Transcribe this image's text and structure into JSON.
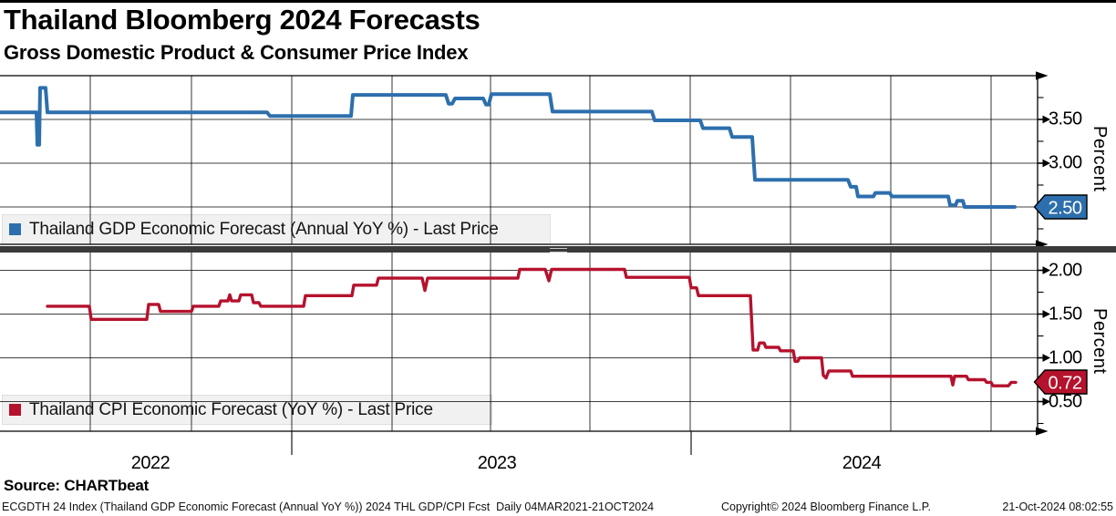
{
  "header": {
    "title": "Thailand Bloomberg 2024 Forecasts",
    "subtitle": "Gross Domestic Product & Consumer Price Index"
  },
  "source": {
    "label": "Source: CHARTbeat"
  },
  "footer": {
    "left": "ECGDTH 24 Index (Thailand GDP Economic Forecast (Annual YoY %)) 2024 THL GDP/CPI Fcst  Daily 04MAR2021-21OCT2024",
    "copyright": "Copyright© 2024 Bloomberg Finance L.P.",
    "datetime": "21-Oct-2024 08:02:55"
  },
  "chart_data": {
    "type": "line",
    "grid": true,
    "legend_position": "inside-bottom-left",
    "x_axis": {
      "years": [
        "2022",
        "2023",
        "2024"
      ],
      "year_label_x": [
        165,
        545,
        945
      ],
      "year_divider_x": [
        320,
        758
      ],
      "x_gridlines": [
        99,
        210,
        320,
        430,
        538,
        647,
        757,
        867,
        977,
        1087
      ]
    },
    "panels": [
      {
        "id": "gdp",
        "legend": "Thailand GDP Economic Forecast (Annual YoY %) - Last Price",
        "ylabel": "Percent",
        "color": "#2d6fad",
        "ylim": [
          2.09,
          4.0
        ],
        "gridline_values": [
          3.5,
          3.0,
          2.5
        ],
        "tick_labels": [
          {
            "v": 3.5,
            "label": "3.50"
          },
          {
            "v": 3.0,
            "label": "3.00"
          }
        ],
        "minor_ticks": [
          3.75,
          3.25,
          2.75,
          2.25
        ],
        "last_price": "2.50",
        "last_value": 2.5,
        "points": [
          [
            0,
            3.58
          ],
          [
            40,
            3.58
          ],
          [
            41,
            3.21
          ],
          [
            43,
            3.21
          ],
          [
            44,
            3.86
          ],
          [
            50,
            3.86
          ],
          [
            52,
            3.58
          ],
          [
            293,
            3.58
          ],
          [
            296,
            3.54
          ],
          [
            385,
            3.54
          ],
          [
            387,
            3.78
          ],
          [
            489,
            3.78
          ],
          [
            492,
            3.68
          ],
          [
            496,
            3.68
          ],
          [
            499,
            3.74
          ],
          [
            530,
            3.74
          ],
          [
            533,
            3.67
          ],
          [
            536,
            3.67
          ],
          [
            539,
            3.79
          ],
          [
            603,
            3.79
          ],
          [
            606,
            3.59
          ],
          [
            715,
            3.59
          ],
          [
            718,
            3.49
          ],
          [
            768,
            3.49
          ],
          [
            771,
            3.4
          ],
          [
            800,
            3.4
          ],
          [
            803,
            3.3
          ],
          [
            825,
            3.3
          ],
          [
            828,
            2.81
          ],
          [
            930,
            2.81
          ],
          [
            933,
            2.73
          ],
          [
            939,
            2.73
          ],
          [
            941,
            2.62
          ],
          [
            958,
            2.62
          ],
          [
            960,
            2.66
          ],
          [
            976,
            2.66
          ],
          [
            978,
            2.62
          ],
          [
            1040,
            2.62
          ],
          [
            1042,
            2.52
          ],
          [
            1048,
            2.52
          ],
          [
            1050,
            2.57
          ],
          [
            1056,
            2.57
          ],
          [
            1058,
            2.5
          ],
          [
            1113,
            2.5
          ]
        ]
      },
      {
        "id": "cpi",
        "legend": "Thailand CPI Economic Forecast (YoY %) - Last Price",
        "ylabel": "Percent",
        "color": "#b5122d",
        "ylim": [
          0.16,
          2.19
        ],
        "gridline_values": [
          2.0,
          1.5,
          1.0,
          0.5
        ],
        "tick_labels": [
          {
            "v": 2.0,
            "label": "2.00"
          },
          {
            "v": 1.5,
            "label": "1.50"
          },
          {
            "v": 1.0,
            "label": "1.00"
          },
          {
            "v": 0.5,
            "label": "0.50"
          }
        ],
        "minor_ticks": [
          1.75,
          1.25,
          0.75,
          0.25
        ],
        "last_price": "0.72",
        "last_value": 0.72,
        "points": [
          [
            52,
            1.59
          ],
          [
            98,
            1.59
          ],
          [
            100,
            1.44
          ],
          [
            161,
            1.44
          ],
          [
            163,
            1.61
          ],
          [
            174,
            1.61
          ],
          [
            176,
            1.53
          ],
          [
            210,
            1.53
          ],
          [
            212,
            1.59
          ],
          [
            240,
            1.59
          ],
          [
            242,
            1.65
          ],
          [
            250,
            1.65
          ],
          [
            252,
            1.72
          ],
          [
            254,
            1.65
          ],
          [
            262,
            1.65
          ],
          [
            264,
            1.72
          ],
          [
            276,
            1.72
          ],
          [
            278,
            1.63
          ],
          [
            284,
            1.63
          ],
          [
            286,
            1.59
          ],
          [
            333,
            1.59
          ],
          [
            335,
            1.71
          ],
          [
            386,
            1.71
          ],
          [
            388,
            1.83
          ],
          [
            413,
            1.83
          ],
          [
            415,
            1.91
          ],
          [
            463,
            1.91
          ],
          [
            466,
            1.77
          ],
          [
            469,
            1.91
          ],
          [
            568,
            1.91
          ],
          [
            570,
            2.01
          ],
          [
            598,
            2.01
          ],
          [
            602,
            1.88
          ],
          [
            605,
            2.01
          ],
          [
            685,
            2.01
          ],
          [
            687,
            1.92
          ],
          [
            756,
            1.92
          ],
          [
            758,
            1.8
          ],
          [
            764,
            1.8
          ],
          [
            766,
            1.71
          ],
          [
            823,
            1.71
          ],
          [
            826,
            1.09
          ],
          [
            831,
            1.09
          ],
          [
            833,
            1.17
          ],
          [
            838,
            1.17
          ],
          [
            840,
            1.12
          ],
          [
            854,
            1.12
          ],
          [
            856,
            1.08
          ],
          [
            870,
            1.08
          ],
          [
            872,
            0.96
          ],
          [
            875,
            0.96
          ],
          [
            877,
            1.0
          ],
          [
            901,
            1.0
          ],
          [
            903,
            0.8
          ],
          [
            906,
            0.77
          ],
          [
            909,
            0.85
          ],
          [
            933,
            0.85
          ],
          [
            935,
            0.79
          ],
          [
            1043,
            0.79
          ],
          [
            1045,
            0.69
          ],
          [
            1047,
            0.79
          ],
          [
            1060,
            0.79
          ],
          [
            1062,
            0.75
          ],
          [
            1080,
            0.75
          ],
          [
            1082,
            0.72
          ],
          [
            1087,
            0.72
          ],
          [
            1089,
            0.68
          ],
          [
            1106,
            0.68
          ],
          [
            1109,
            0.72
          ],
          [
            1114,
            0.72
          ]
        ]
      }
    ]
  }
}
